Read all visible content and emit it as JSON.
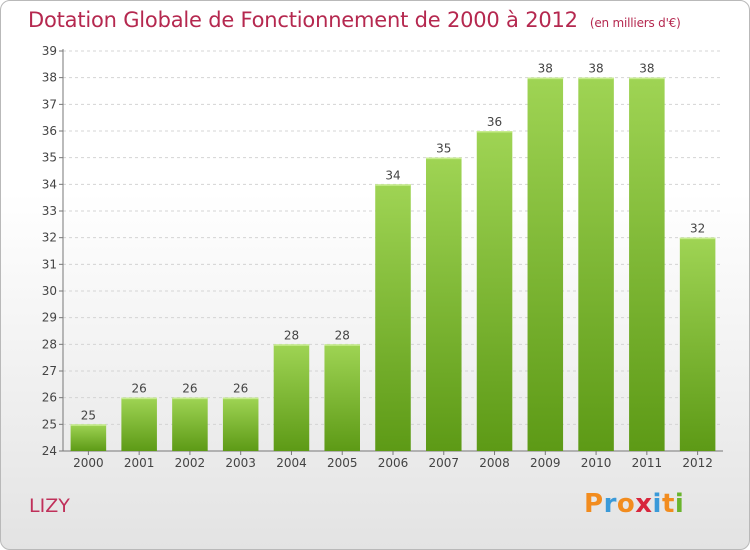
{
  "header": {
    "title": "Dotation Globale de Fonctionnement de 2000 à 2012",
    "subtitle": "(en milliers d'€)"
  },
  "footer": {
    "city": "LIZY",
    "logo": "Proxiti"
  },
  "colors": {
    "title": "#b5284f",
    "bar_top": "#9fd454",
    "bar_bottom": "#5d9a16",
    "logo_letters": [
      "#f28c1e",
      "#3a9ad9",
      "#f28c1e",
      "#d8263c",
      "#3a9ad9",
      "#f28c1e",
      "#6ab42d"
    ]
  },
  "chart_data": {
    "type": "bar",
    "title": "Dotation Globale de Fonctionnement de 2000 à 2012",
    "subtitle": "(en milliers d'€)",
    "categories": [
      "2000",
      "2001",
      "2002",
      "2003",
      "2004",
      "2005",
      "2006",
      "2007",
      "2008",
      "2009",
      "2010",
      "2011",
      "2012"
    ],
    "values": [
      25,
      26,
      26,
      26,
      28,
      28,
      34,
      35,
      36,
      38,
      38,
      38,
      32
    ],
    "ylim": [
      24,
      39
    ],
    "yticks": [
      24,
      25,
      26,
      27,
      28,
      29,
      30,
      31,
      32,
      33,
      34,
      35,
      36,
      37,
      38,
      39
    ],
    "grid": true,
    "data_labels": true
  }
}
